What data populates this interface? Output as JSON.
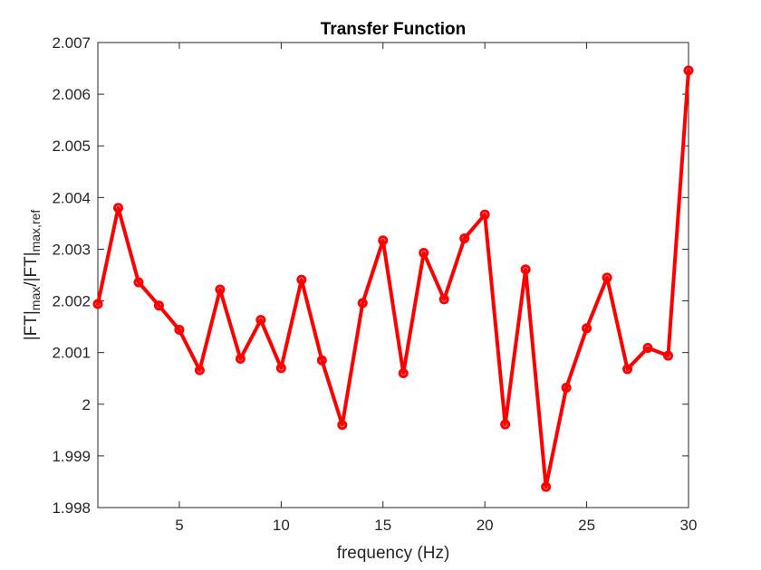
{
  "chart_data": {
    "type": "line",
    "title": "Transfer Function",
    "xlabel": "frequency (Hz)",
    "ylabel": {
      "p1": "|FT|",
      "s1": "max",
      "p2": "/|FT|",
      "s2": "max,ref"
    },
    "xlim": [
      1,
      30
    ],
    "ylim": [
      1.998,
      2.007
    ],
    "xticks": [
      5,
      10,
      15,
      20,
      25,
      30
    ],
    "xtick_labels": [
      "5",
      "10",
      "15",
      "20",
      "25",
      "30"
    ],
    "yticks": [
      1.998,
      1.999,
      2.0,
      2.001,
      2.002,
      2.003,
      2.004,
      2.005,
      2.006,
      2.007
    ],
    "ytick_labels": [
      "1.998",
      "1.999",
      "2",
      "2.001",
      "2.002",
      "2.003",
      "2.004",
      "2.005",
      "2.006",
      "2.007"
    ],
    "grid": false,
    "legend": "none",
    "series": [
      {
        "color": "#ff0000",
        "marker": "circle",
        "x": [
          1,
          2,
          3,
          4,
          5,
          6,
          7,
          8,
          9,
          10,
          11,
          12,
          13,
          14,
          15,
          16,
          17,
          18,
          19,
          20,
          21,
          22,
          23,
          24,
          25,
          26,
          27,
          28,
          29,
          30
        ],
        "y": [
          2.00194,
          2.0038,
          2.00236,
          2.00191,
          2.00144,
          2.00066,
          2.00222,
          2.00088,
          2.00163,
          2.0007,
          2.00241,
          2.00085,
          1.9996,
          2.00196,
          2.00317,
          2.0006,
          2.00293,
          2.00203,
          2.00321,
          2.00367,
          1.99961,
          2.00261,
          1.9984,
          2.00032,
          2.00147,
          2.00245,
          2.00068,
          2.00109,
          2.00094,
          2.00646
        ]
      }
    ]
  }
}
